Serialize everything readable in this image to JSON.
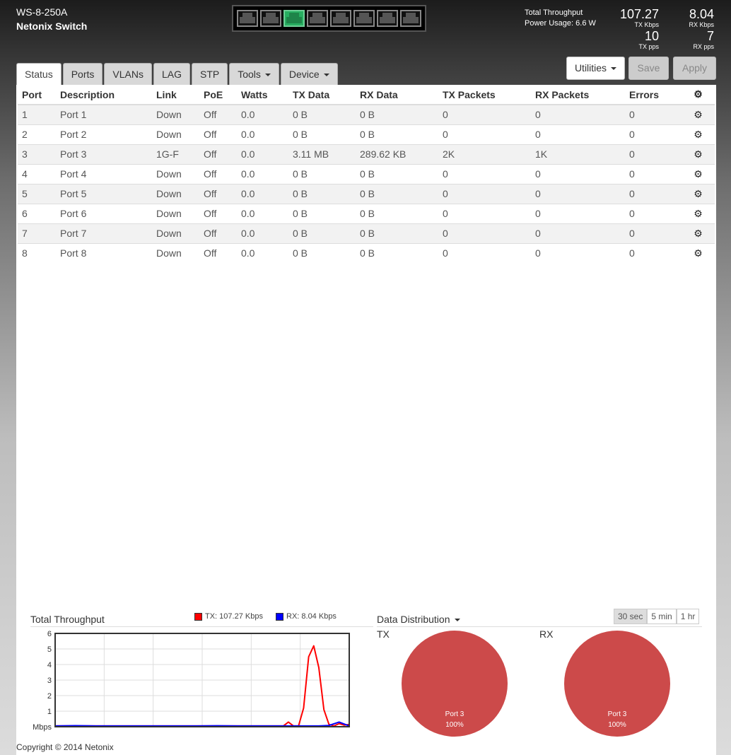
{
  "header": {
    "model": "WS-8-250A",
    "name": "Netonix Switch",
    "total_throughput_label": "Total Throughput",
    "power_usage": "Power Usage: 6.6 W",
    "tx_kbps": "107.27",
    "tx_kbps_unit": "TX Kbps",
    "rx_kbps": "8.04",
    "rx_kbps_unit": "RX Kbps",
    "tx_pps": "10",
    "tx_pps_unit": "TX pps",
    "rx_pps": "7",
    "rx_pps_unit": "RX pps",
    "port_status": [
      "down",
      "down",
      "up",
      "down",
      "down",
      "down",
      "down",
      "down"
    ]
  },
  "tabs": [
    {
      "label": "Status",
      "active": true
    },
    {
      "label": "Ports"
    },
    {
      "label": "VLANs"
    },
    {
      "label": "LAG"
    },
    {
      "label": "STP"
    },
    {
      "label": "Tools",
      "dropdown": true
    },
    {
      "label": "Device",
      "dropdown": true
    }
  ],
  "actions": {
    "utilities": "Utilities",
    "save": "Save",
    "apply": "Apply"
  },
  "table": {
    "columns": [
      "Port",
      "Description",
      "Link",
      "PoE",
      "Watts",
      "TX Data",
      "RX Data",
      "TX Packets",
      "RX Packets",
      "Errors"
    ],
    "rows": [
      [
        "1",
        "Port 1",
        "Down",
        "Off",
        "0.0",
        "0 B",
        "0 B",
        "0",
        "0",
        "0"
      ],
      [
        "2",
        "Port 2",
        "Down",
        "Off",
        "0.0",
        "0 B",
        "0 B",
        "0",
        "0",
        "0"
      ],
      [
        "3",
        "Port 3",
        "1G-F",
        "Off",
        "0.0",
        "3.11 MB",
        "289.62 KB",
        "2K",
        "1K",
        "0"
      ],
      [
        "4",
        "Port 4",
        "Down",
        "Off",
        "0.0",
        "0 B",
        "0 B",
        "0",
        "0",
        "0"
      ],
      [
        "5",
        "Port 5",
        "Down",
        "Off",
        "0.0",
        "0 B",
        "0 B",
        "0",
        "0",
        "0"
      ],
      [
        "6",
        "Port 6",
        "Down",
        "Off",
        "0.0",
        "0 B",
        "0 B",
        "0",
        "0",
        "0"
      ],
      [
        "7",
        "Port 7",
        "Down",
        "Off",
        "0.0",
        "0 B",
        "0 B",
        "0",
        "0",
        "0"
      ],
      [
        "8",
        "Port 8",
        "Down",
        "Off",
        "0.0",
        "0 B",
        "0 B",
        "0",
        "0",
        "0"
      ]
    ]
  },
  "throughput": {
    "title": "Total Throughput",
    "tx_legend": "TX: 107.27 Kbps",
    "rx_legend": "RX: 8.04 Kbps"
  },
  "distribution": {
    "title": "Data Distribution",
    "ranges": [
      "30 sec",
      "5 min",
      "1 hr"
    ],
    "active_range": "30 sec",
    "tx_label": "TX",
    "rx_label": "RX",
    "tx_slice": {
      "label": "Port 3",
      "pct": "100%"
    },
    "rx_slice": {
      "label": "Port 3",
      "pct": "100%"
    }
  },
  "chart_data": {
    "type": "line",
    "ylabel": "Mbps",
    "ylim": [
      0,
      6
    ],
    "yticks": [
      1,
      2,
      3,
      4,
      5,
      6
    ],
    "grid": true,
    "series": [
      {
        "name": "TX",
        "color": "#ff0000",
        "x": [
          0,
          0.5,
          1,
          1.5,
          2,
          2.5,
          3,
          3.5,
          4,
          4.5,
          5,
          5.5,
          6,
          6.5,
          7,
          7.5,
          8,
          8.5,
          9,
          9.5,
          10,
          10.5,
          11,
          11.5,
          12,
          12.5,
          13,
          13.5,
          14,
          14.5,
          15,
          15.5,
          16,
          16.5,
          17,
          17.5,
          18,
          18.5,
          19,
          19.5,
          20,
          20.5,
          21,
          21.5,
          22,
          22.5,
          23,
          23.5,
          24,
          24.5,
          25,
          25.5,
          26,
          26.5,
          27,
          27.5,
          28,
          28.5,
          29
        ],
        "values": [
          0.05,
          0.05,
          0.05,
          0.05,
          0.05,
          0.05,
          0.05,
          0.05,
          0.05,
          0.05,
          0.05,
          0.05,
          0.05,
          0.05,
          0.05,
          0.05,
          0.05,
          0.05,
          0.05,
          0.05,
          0.05,
          0.05,
          0.05,
          0.05,
          0.05,
          0.05,
          0.05,
          0.05,
          0.05,
          0.05,
          0.05,
          0.05,
          0.05,
          0.05,
          0.05,
          0.05,
          0.05,
          0.05,
          0.05,
          0.05,
          0.05,
          0.05,
          0.05,
          0.05,
          0.05,
          0.05,
          0.3,
          0.05,
          0.05,
          1.2,
          4.5,
          5.2,
          3.8,
          1.1,
          0.15,
          0.05,
          0.2,
          0.1,
          0.15
        ]
      },
      {
        "name": "RX",
        "color": "#0000ff",
        "x": [
          0,
          2,
          4,
          6,
          8,
          10,
          12,
          14,
          16,
          18,
          20,
          22,
          24,
          26,
          27,
          28,
          29
        ],
        "values": [
          0.05,
          0.07,
          0.05,
          0.05,
          0.05,
          0.05,
          0.05,
          0.05,
          0.06,
          0.05,
          0.05,
          0.05,
          0.05,
          0.05,
          0.08,
          0.3,
          0.05
        ]
      }
    ]
  },
  "footer": {
    "copyright": "Copyright © 2014 Netonix"
  }
}
